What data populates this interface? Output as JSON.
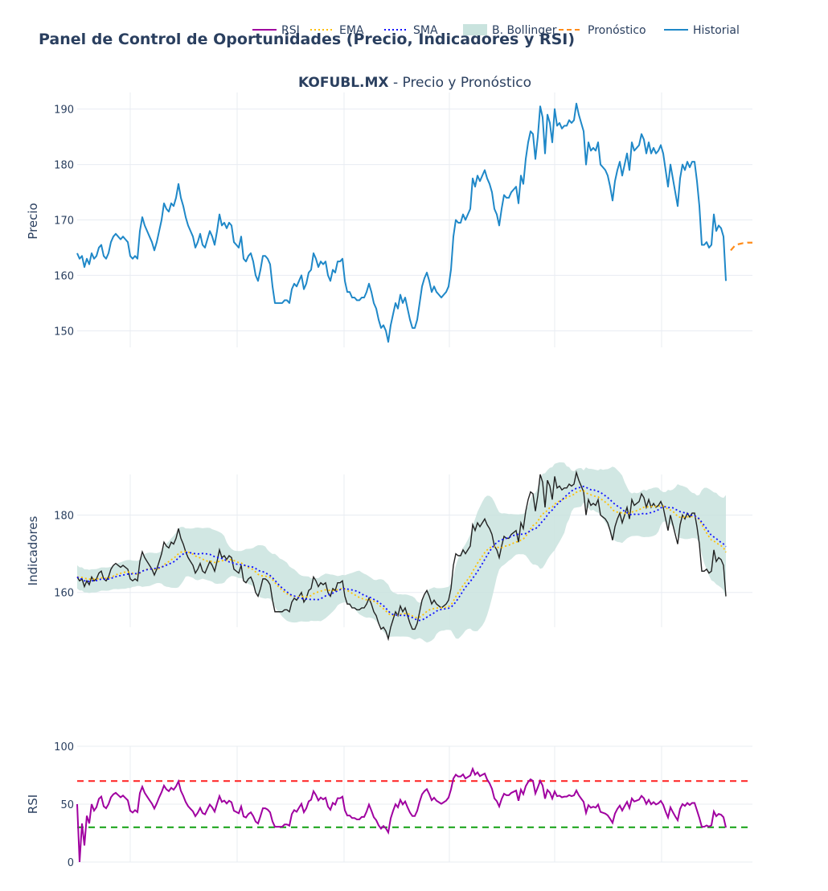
{
  "title": "Panel de Control de Oportunidades (Precio, Indicadores y RSI)",
  "legend": [
    {
      "label": "RSI",
      "color": "#a000a0",
      "style": "solid"
    },
    {
      "label": "EMA",
      "color": "#ffc000",
      "style": "dot"
    },
    {
      "label": "SMA",
      "color": "#1010ff",
      "style": "dot"
    },
    {
      "label": "B. Bollinger",
      "color": "#c9e3de",
      "style": "fill"
    },
    {
      "label": "Pronóstico",
      "color": "#ff8c1a",
      "style": "dash"
    },
    {
      "label": "Historial",
      "color": "#1f88c8",
      "style": "solid"
    }
  ],
  "chart_data": [
    {
      "type": "line",
      "title_bold": "KOFUBL.MX",
      "title_rest": " - Precio y Pronóstico",
      "ylabel": "Precio",
      "ylim": [
        147,
        193
      ],
      "yticks": [
        150,
        160,
        170,
        180,
        190
      ],
      "grid": true,
      "x_range": [
        0,
        280
      ],
      "series": [
        {
          "name": "Historial",
          "color": "#1f88c8",
          "x_start": 0,
          "values": [
            164,
            163,
            163.5,
            161.5,
            163,
            162,
            164,
            163,
            163.5,
            165,
            165.5,
            163.5,
            163,
            164,
            166,
            167,
            167.5,
            167,
            166.5,
            167,
            166.5,
            166,
            163.5,
            163,
            163.5,
            163,
            168,
            170.5,
            169,
            168,
            167,
            166,
            164.5,
            166,
            168,
            170,
            173,
            172,
            171.5,
            173,
            172.5,
            174,
            176.5,
            174,
            172.5,
            170.5,
            169,
            168,
            167,
            165,
            166,
            167.5,
            165.5,
            165,
            166.5,
            168,
            167,
            165.5,
            168,
            171,
            169,
            169.5,
            168.5,
            169.5,
            169,
            166,
            165.5,
            165,
            167,
            163,
            162.5,
            163.5,
            164,
            162.5,
            160,
            159,
            161,
            163.5,
            163.5,
            163,
            162,
            158,
            155,
            155,
            155,
            155,
            155.5,
            155.5,
            155,
            157.5,
            158.5,
            158,
            159,
            160,
            157.5,
            158.5,
            160.5,
            161,
            164,
            163,
            161.5,
            162.5,
            162,
            162.5,
            160,
            159,
            161,
            160.5,
            162.5,
            162.5,
            163,
            159,
            157,
            157,
            156,
            156,
            155.5,
            155.5,
            156,
            156,
            157,
            158.5,
            157,
            155,
            154,
            152,
            150.5,
            151,
            150,
            148,
            151,
            153,
            155,
            154,
            156.5,
            155,
            156,
            154,
            152,
            150.5,
            150.5,
            152,
            155,
            158,
            159.5,
            160.5,
            159,
            157,
            158,
            157,
            156.5,
            156,
            156.5,
            157,
            158,
            161,
            167,
            170,
            169.5,
            169.5,
            171,
            170,
            171,
            172,
            177.5,
            176,
            178,
            177,
            178,
            179,
            177.5,
            176.5,
            175,
            172,
            171,
            169,
            172,
            174.5,
            174,
            174,
            175,
            175.5,
            176,
            173,
            178,
            176.5,
            181,
            184,
            186,
            185.5,
            181,
            185,
            190.5,
            188.5,
            182,
            189,
            187.5,
            184,
            190,
            187,
            187.5,
            186.5,
            187,
            187,
            188,
            187.5,
            188,
            191,
            189,
            187.5,
            186,
            180,
            184,
            182.5,
            183,
            182.5,
            184,
            180,
            179.5,
            179,
            178,
            176,
            173.5,
            177,
            179,
            180.5,
            178,
            180,
            182,
            179,
            184,
            182.5,
            183,
            183.5,
            185.5,
            184.5,
            182,
            184,
            182,
            183,
            182,
            182.5,
            183.5,
            182,
            179,
            176,
            180,
            177.5,
            175,
            172.5,
            177.5,
            180,
            179,
            180.5,
            179.5,
            180.5,
            180.5,
            177,
            172.5,
            165.5,
            165.5,
            166,
            165,
            165.5,
            171,
            168,
            169,
            168.5,
            167,
            159
          ]
        },
        {
          "name": "Pronóstico",
          "color": "#ff8c1a",
          "dash": true,
          "x": [
            271,
            272,
            273,
            274,
            275,
            276,
            277,
            278,
            279,
            280
          ],
          "values": [
            164.5,
            165,
            165.5,
            165.6,
            165.7,
            165.8,
            165.8,
            165.9,
            165.9,
            165.9
          ]
        }
      ]
    },
    {
      "type": "line",
      "ylabel": "Indicadores",
      "ylim": [
        151,
        190.5
      ],
      "yticks": [
        160,
        180
      ],
      "grid": true,
      "x_range": [
        0,
        280
      ]
    },
    {
      "type": "line",
      "ylabel": "RSI",
      "ylim": [
        0,
        100
      ],
      "yticks": [
        0,
        50,
        100
      ],
      "grid": true,
      "x_range": [
        0,
        280
      ],
      "hlines": [
        {
          "y": 70,
          "color": "#ff2020"
        },
        {
          "y": 30,
          "color": "#10a010"
        }
      ]
    }
  ]
}
